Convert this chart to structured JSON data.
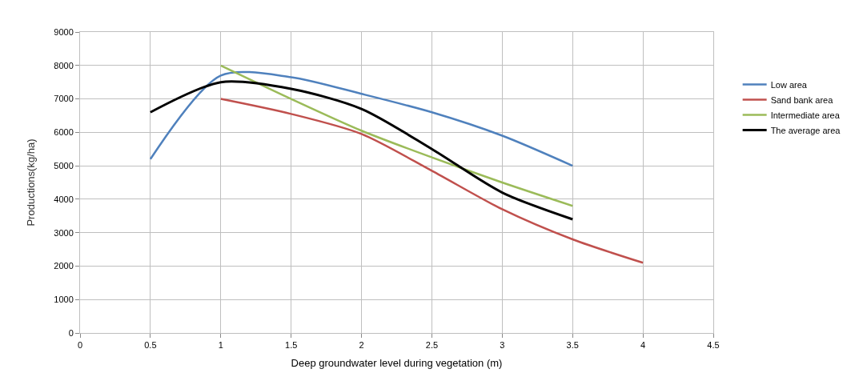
{
  "chart_data": {
    "type": "line",
    "xlabel": "Deep groundwater level during vegetation (m)",
    "ylabel": "Productions(kg/ha)",
    "xlim": [
      0,
      4.5
    ],
    "xticks": [
      0,
      0.5,
      1,
      1.5,
      2,
      2.5,
      3,
      3.5,
      4,
      4.5
    ],
    "ylim": [
      0,
      9000
    ],
    "yticks": [
      0,
      1000,
      2000,
      3000,
      4000,
      5000,
      6000,
      7000,
      8000,
      9000
    ],
    "grid": true,
    "legend": "right",
    "marker": "none",
    "line_style": "solid",
    "series": [
      {
        "name": "Low area",
        "color": "#4f81bd",
        "x": [
          0.5,
          1,
          1.5,
          2,
          2.5,
          3,
          3.5
        ],
        "values": [
          5200,
          7700,
          7650,
          7150,
          6600,
          5900,
          5000
        ]
      },
      {
        "name": "Sand bank area",
        "color": "#c0504d",
        "x": [
          1,
          1.5,
          2,
          2.5,
          3,
          3.5,
          4
        ],
        "values": [
          7000,
          6550,
          5950,
          4850,
          3700,
          2800,
          2100
        ]
      },
      {
        "name": "Intermediate area",
        "color": "#9bbb59",
        "x": [
          1,
          1.5,
          2,
          2.5,
          3,
          3.5
        ],
        "values": [
          8000,
          7000,
          6050,
          5250,
          4500,
          3800
        ]
      },
      {
        "name": "The average area",
        "color": "#000000",
        "x": [
          0.5,
          1,
          1.5,
          2,
          2.5,
          3,
          3.5
        ],
        "values": [
          6600,
          7500,
          7300,
          6700,
          5500,
          4200,
          3400
        ]
      }
    ]
  }
}
